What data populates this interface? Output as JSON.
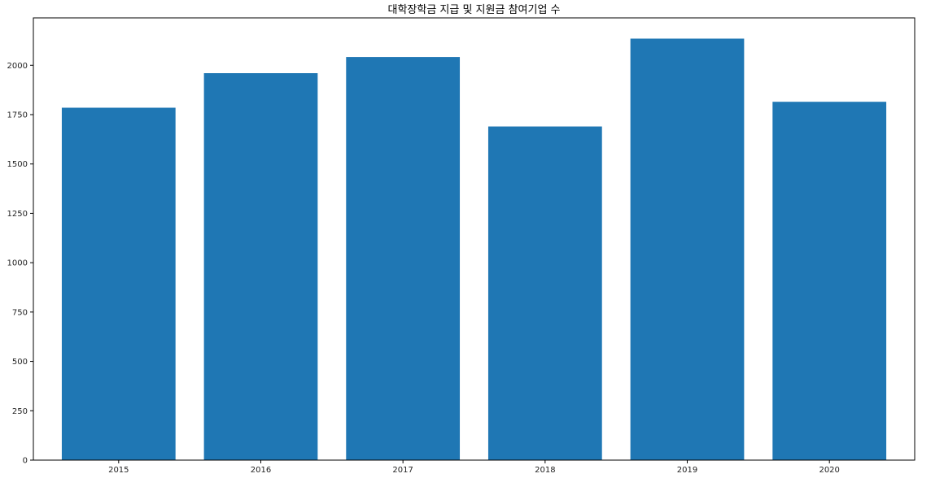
{
  "chart_data": {
    "type": "bar",
    "title": "대학장학금 지급 및 지원금 참여기업 수",
    "xlabel": "",
    "ylabel": "",
    "categories": [
      "2015",
      "2016",
      "2017",
      "2018",
      "2019",
      "2020"
    ],
    "values": [
      1785,
      1960,
      2042,
      1690,
      2135,
      1815
    ],
    "ylim": [
      0,
      2240
    ],
    "yticks": [
      0,
      250,
      500,
      750,
      1000,
      1250,
      1500,
      1750,
      2000
    ],
    "bar_color": "#1f77b4",
    "grid": false,
    "legend": "none"
  }
}
